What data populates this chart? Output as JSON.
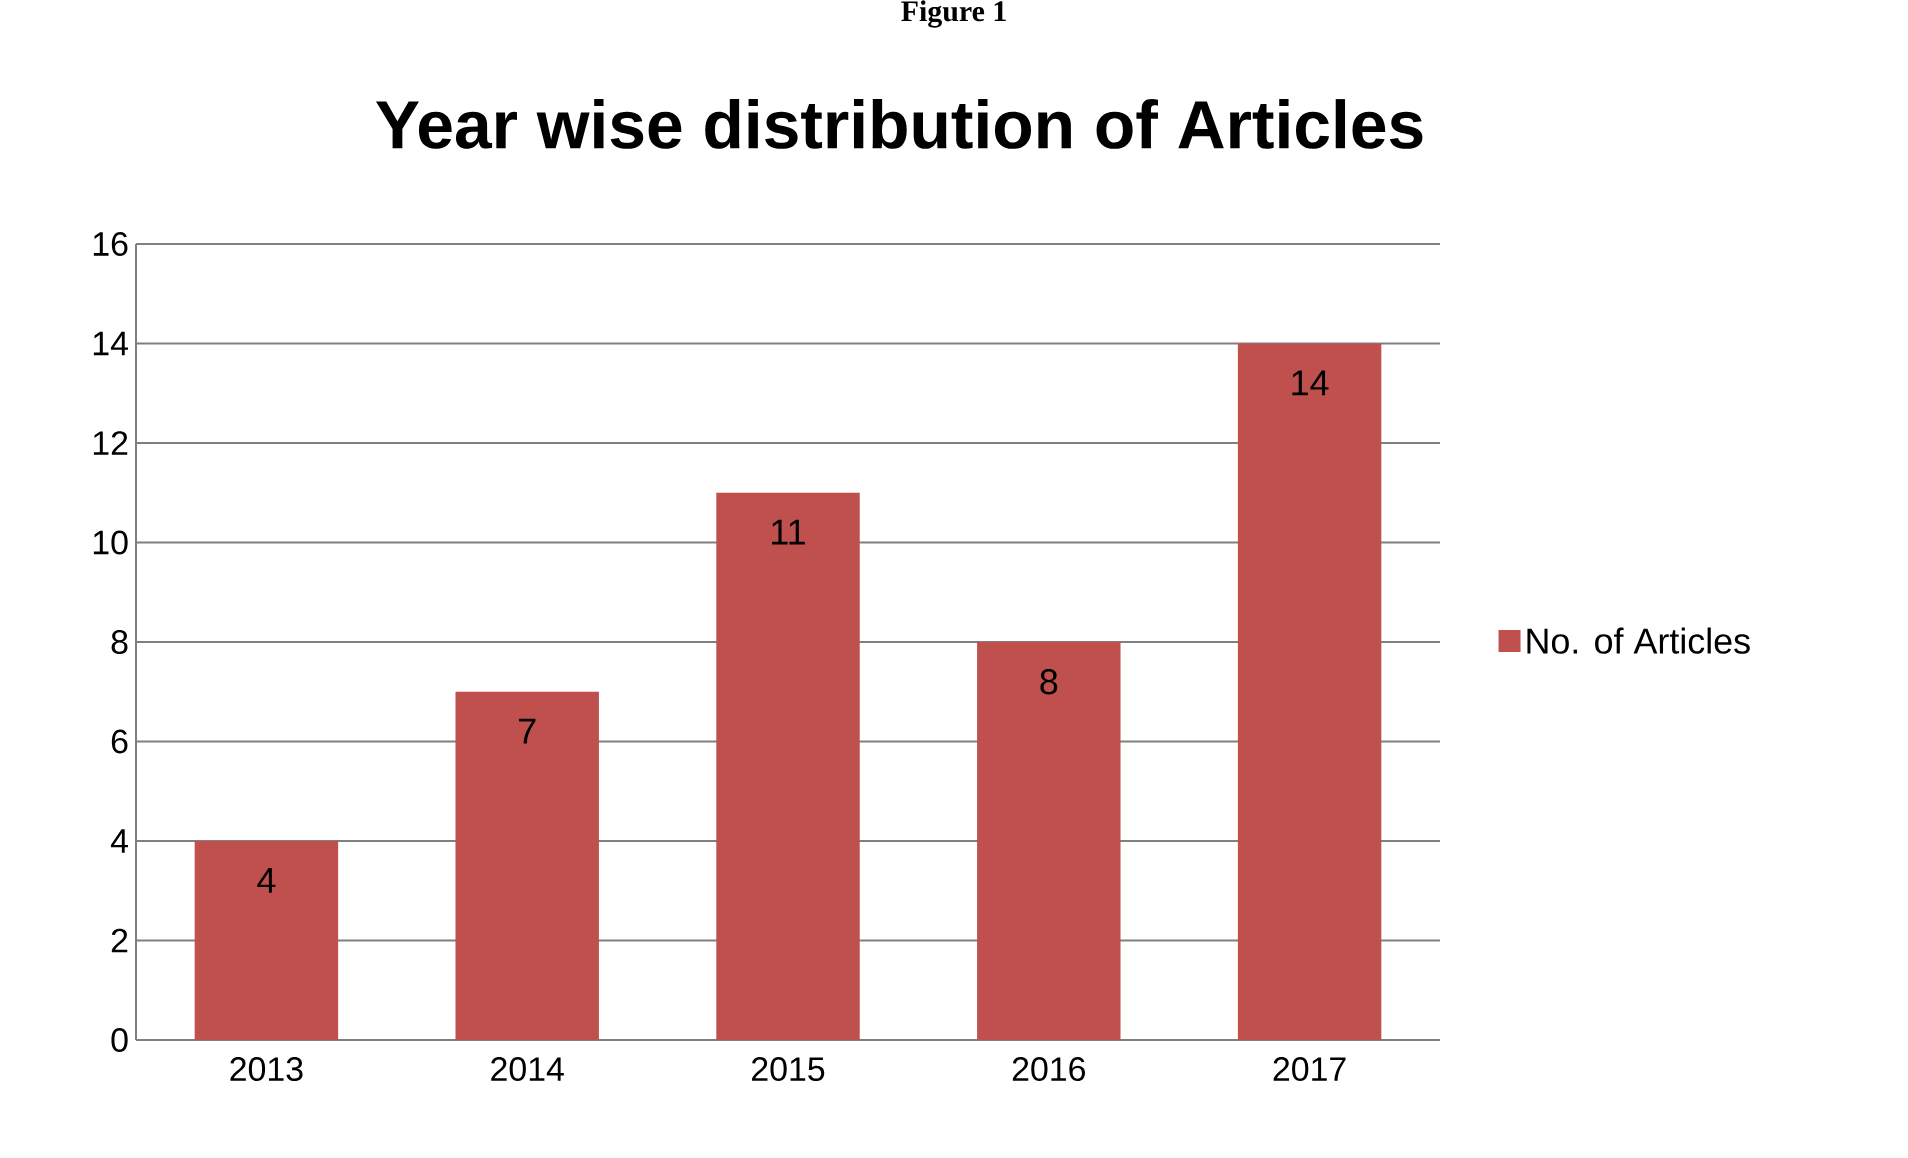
{
  "chart_data": {
    "type": "bar",
    "title": "Year wise distribution of Articles",
    "categories": [
      "2013",
      "2014",
      "2015",
      "2016",
      "2017"
    ],
    "series": [
      {
        "name": "No. of Articles",
        "color": "#c0504d",
        "values": [
          4,
          7,
          11,
          8,
          14
        ]
      }
    ],
    "ylim": [
      0,
      16
    ],
    "yticks": [
      0,
      2,
      4,
      6,
      8,
      10,
      12,
      14,
      16
    ],
    "grid": "y",
    "legend": "right",
    "data_labels": true,
    "annotations": [
      "Figure 1"
    ]
  }
}
